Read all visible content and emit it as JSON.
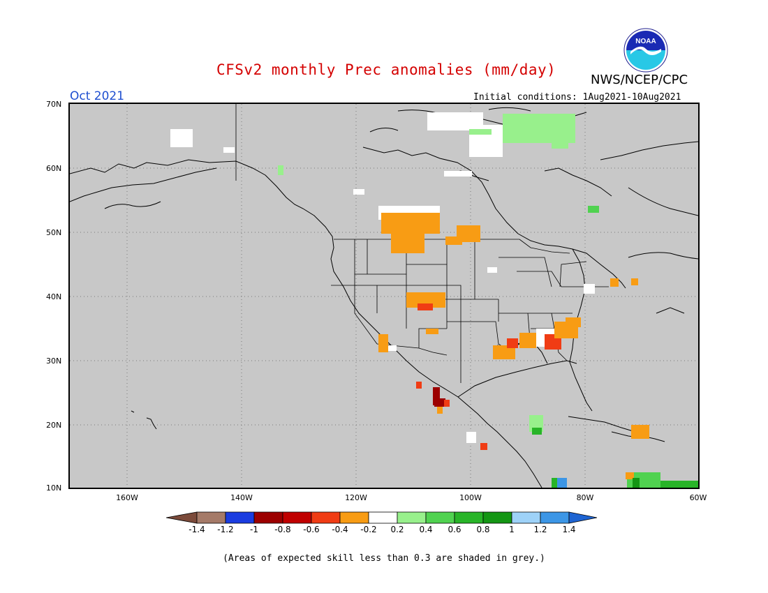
{
  "header": {
    "title": "CFSv2 monthly Prec anomalies (mm/day)",
    "org": "NWS/NCEP/CPC",
    "month": "Oct 2021",
    "init": "Initial conditions: 1Aug2021-10Aug2021",
    "logo_text": "NOAA"
  },
  "map": {
    "lat_labels": [
      "70N",
      "60N",
      "50N",
      "40N",
      "30N",
      "20N",
      "10N"
    ],
    "lon_labels": [
      "160W",
      "140W",
      "120W",
      "100W",
      "80W",
      "60W"
    ],
    "background_color": "#c8c8c8"
  },
  "colorbar": {
    "labels": [
      "-1.4",
      "-1.2",
      "-1",
      "-0.8",
      "-0.6",
      "-0.4",
      "-0.2",
      "0.2",
      "0.4",
      "0.6",
      "0.8",
      "1",
      "1.2",
      "1.4"
    ],
    "colors": [
      "#7b4a3a",
      "#a57a68",
      "#1a3ce0",
      "#9c0000",
      "#c00000",
      "#f03c14",
      "#f89c14",
      "#ffffff",
      "#98f08c",
      "#50d250",
      "#28b428",
      "#149614",
      "#9ed2f8",
      "#3c96e6",
      "#1e64d2"
    ]
  },
  "note": "(Areas of expected skill less than 0.3 are shaded in grey.)"
}
